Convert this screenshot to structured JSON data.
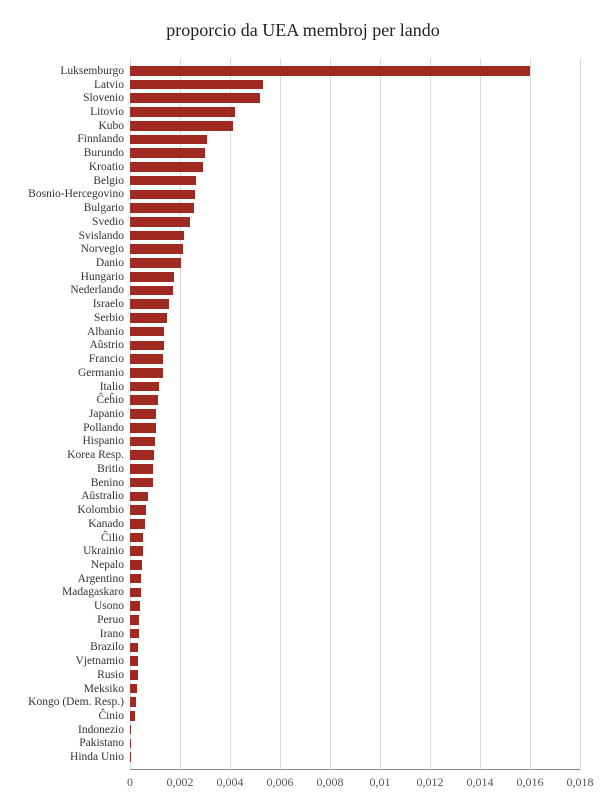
{
  "chart": {
    "type": "bar-horizontal",
    "title": "proporcio da UEA membroj per lando",
    "title_fontsize": 18,
    "label_fontsize": 11.5,
    "tick_fontsize": 12,
    "background_color": "#ffffff",
    "bar_color": "#a02a22",
    "grid_color": "#d9d9d9",
    "axis_color": "#888888",
    "text_color": "#333333",
    "decimal_separator": ",",
    "xlim": [
      0,
      0.018
    ],
    "xtick_step": 0.002,
    "xticks": [
      0,
      0.002,
      0.004,
      0.006,
      0.008,
      0.01,
      0.012,
      0.014,
      0.016,
      0.018
    ],
    "xtick_labels": [
      "0",
      "0,002",
      "0,004",
      "0,006",
      "0,008",
      "0,01",
      "0,012",
      "0,014",
      "0,016",
      "0,018"
    ],
    "categories": [
      "Luksemburgo",
      "Latvio",
      "Slovenio",
      "Litovio",
      "Kubo",
      "Finnlando",
      "Burundo",
      "Kroatio",
      "Belgio",
      "Bosnio-Hercegovino",
      "Bulgario",
      "Svedio",
      "Svislando",
      "Norvegio",
      "Danio",
      "Hungario",
      "Nederlando",
      "Israelo",
      "Serbio",
      "Albanio",
      "Aŭstrio",
      "Francio",
      "Germanio",
      "Italio",
      "Ĉeĥio",
      "Japanio",
      "Pollando",
      "Hispanio",
      "Korea Resp.",
      "Britio",
      "Benino",
      "Aŭstralio",
      "Kolombio",
      "Kanado",
      "Ĉilio",
      "Ukrainio",
      "Nepalo",
      "Argentino",
      "Madagaskaro",
      "Usono",
      "Peruo",
      "Irano",
      "Brazilo",
      "Vjetnamio",
      "Rusio",
      "Meksiko",
      "Kongo (Dem. Resp.)",
      "Ĉinio",
      "Indonezio",
      "Pakistano",
      "Hinda Unio"
    ],
    "values": [
      0.016,
      0.0053,
      0.0052,
      0.0042,
      0.0041,
      0.0031,
      0.003,
      0.0029,
      0.00265,
      0.0026,
      0.00255,
      0.0024,
      0.00215,
      0.0021,
      0.00205,
      0.00175,
      0.0017,
      0.00155,
      0.0015,
      0.00135,
      0.00135,
      0.00132,
      0.0013,
      0.00115,
      0.0011,
      0.00105,
      0.00102,
      0.001,
      0.00095,
      0.0009,
      0.0009,
      0.00072,
      0.00065,
      0.0006,
      0.00052,
      0.0005,
      0.00048,
      0.00045,
      0.00042,
      0.0004,
      0.00035,
      0.00034,
      0.00033,
      0.00032,
      0.0003,
      0.00028,
      0.00025,
      0.0002,
      5e-05,
      4e-05,
      3e-05
    ]
  }
}
